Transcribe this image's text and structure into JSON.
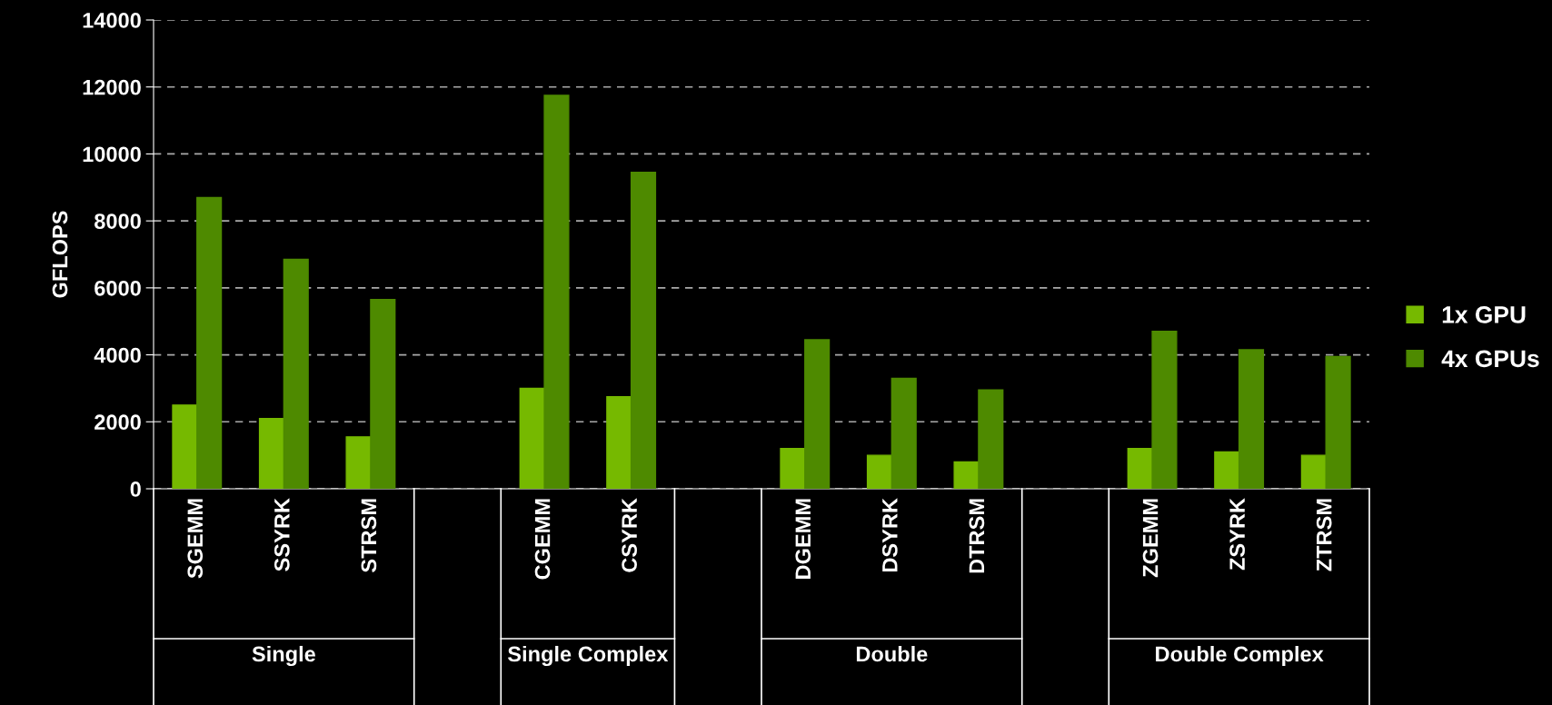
{
  "chart_data": {
    "type": "bar",
    "ylabel": "GFLOPS",
    "categories": [
      "SGEMM",
      "SSYRK",
      "STRSM",
      null,
      "CGEMM",
      "CSYRK",
      null,
      "DGEMM",
      "DSYRK",
      "DTRSM",
      null,
      "ZGEMM",
      "ZSYRK",
      "ZTRSM"
    ],
    "series": [
      {
        "name": "1x GPU",
        "color": "#76b900",
        "values": [
          2500,
          2100,
          1550,
          null,
          3000,
          2750,
          null,
          1200,
          1000,
          800,
          null,
          1200,
          1100,
          1000
        ]
      },
      {
        "name": "4x GPUs",
        "color": "#4e8a00",
        "values": [
          8700,
          6850,
          5650,
          null,
          11750,
          9450,
          null,
          4450,
          3300,
          2950,
          null,
          4700,
          4150,
          3950
        ]
      }
    ],
    "annotations": [
      "Single",
      "Single Complex",
      "Double",
      "Double Complex"
    ],
    "ylim": [
      0,
      14000
    ],
    "yticks": [
      0,
      2000,
      4000,
      6000,
      8000,
      10000,
      12000,
      14000
    ],
    "grid": "y",
    "legend": "right"
  }
}
